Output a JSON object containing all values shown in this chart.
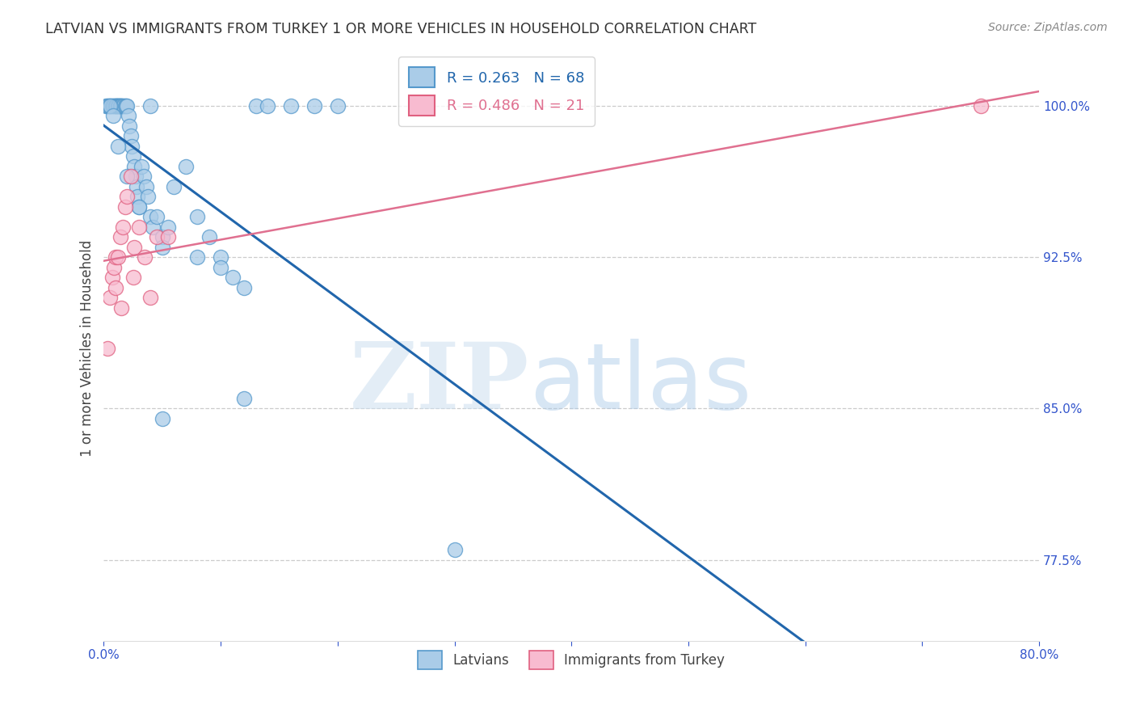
{
  "title": "LATVIAN VS IMMIGRANTS FROM TURKEY 1 OR MORE VEHICLES IN HOUSEHOLD CORRELATION CHART",
  "source": "Source: ZipAtlas.com",
  "ylabel": "1 or more Vehicles in Household",
  "xlim": [
    0.0,
    80.0
  ],
  "ylim": [
    73.5,
    102.5
  ],
  "yticks": [
    77.5,
    85.0,
    92.5,
    100.0
  ],
  "xticks": [
    0.0,
    10.0,
    20.0,
    30.0,
    40.0,
    50.0,
    60.0,
    70.0,
    80.0
  ],
  "ytick_labels": [
    "77.5%",
    "85.0%",
    "92.5%",
    "100.0%"
  ],
  "blue_line_color": "#2166ac",
  "pink_line_color": "#e07090",
  "blue_scatter_facecolor": "#aacce8",
  "blue_scatter_edgecolor": "#5599cc",
  "pink_scatter_facecolor": "#f8bbd0",
  "pink_scatter_edgecolor": "#e06080",
  "background_color": "#ffffff",
  "grid_color": "#cccccc",
  "title_color": "#333333",
  "tick_color": "#3355cc",
  "source_color": "#888888",
  "blue_scatter_x": [
    0.2,
    0.3,
    0.4,
    0.5,
    0.6,
    0.7,
    0.8,
    0.9,
    1.0,
    1.0,
    1.1,
    1.1,
    1.2,
    1.2,
    1.3,
    1.3,
    1.4,
    1.4,
    1.5,
    1.5,
    1.6,
    1.7,
    1.8,
    1.9,
    2.0,
    2.1,
    2.2,
    2.3,
    2.4,
    2.5,
    2.6,
    2.7,
    2.8,
    2.9,
    3.0,
    3.2,
    3.4,
    3.6,
    3.8,
    4.0,
    4.2,
    4.5,
    5.0,
    5.5,
    6.0,
    7.0,
    8.0,
    9.0,
    10.0,
    11.0,
    12.0,
    13.0,
    14.0,
    16.0,
    18.0,
    20.0,
    0.5,
    0.8,
    1.2,
    2.0,
    3.0,
    5.0,
    8.0,
    10.0,
    12.0,
    30.0,
    5.0,
    4.0
  ],
  "blue_scatter_y": [
    100.0,
    100.0,
    100.0,
    100.0,
    100.0,
    100.0,
    100.0,
    100.0,
    100.0,
    100.0,
    100.0,
    100.0,
    100.0,
    100.0,
    100.0,
    100.0,
    100.0,
    100.0,
    100.0,
    100.0,
    100.0,
    100.0,
    100.0,
    100.0,
    100.0,
    99.5,
    99.0,
    98.5,
    98.0,
    97.5,
    97.0,
    96.5,
    96.0,
    95.5,
    95.0,
    97.0,
    96.5,
    96.0,
    95.5,
    94.5,
    94.0,
    94.5,
    93.5,
    94.0,
    96.0,
    97.0,
    94.5,
    93.5,
    92.5,
    91.5,
    91.0,
    100.0,
    100.0,
    100.0,
    100.0,
    100.0,
    100.0,
    99.5,
    98.0,
    96.5,
    95.0,
    93.0,
    92.5,
    92.0,
    85.5,
    78.0,
    84.5,
    100.0
  ],
  "pink_scatter_x": [
    0.3,
    0.5,
    0.7,
    0.9,
    1.0,
    1.2,
    1.4,
    1.6,
    1.8,
    2.0,
    2.3,
    2.6,
    3.0,
    3.5,
    4.5,
    1.0,
    1.5,
    2.5,
    4.0,
    5.5,
    75.0
  ],
  "pink_scatter_y": [
    88.0,
    90.5,
    91.5,
    92.0,
    92.5,
    92.5,
    93.5,
    94.0,
    95.0,
    95.5,
    96.5,
    93.0,
    94.0,
    92.5,
    93.5,
    91.0,
    90.0,
    91.5,
    90.5,
    93.5,
    100.0
  ]
}
